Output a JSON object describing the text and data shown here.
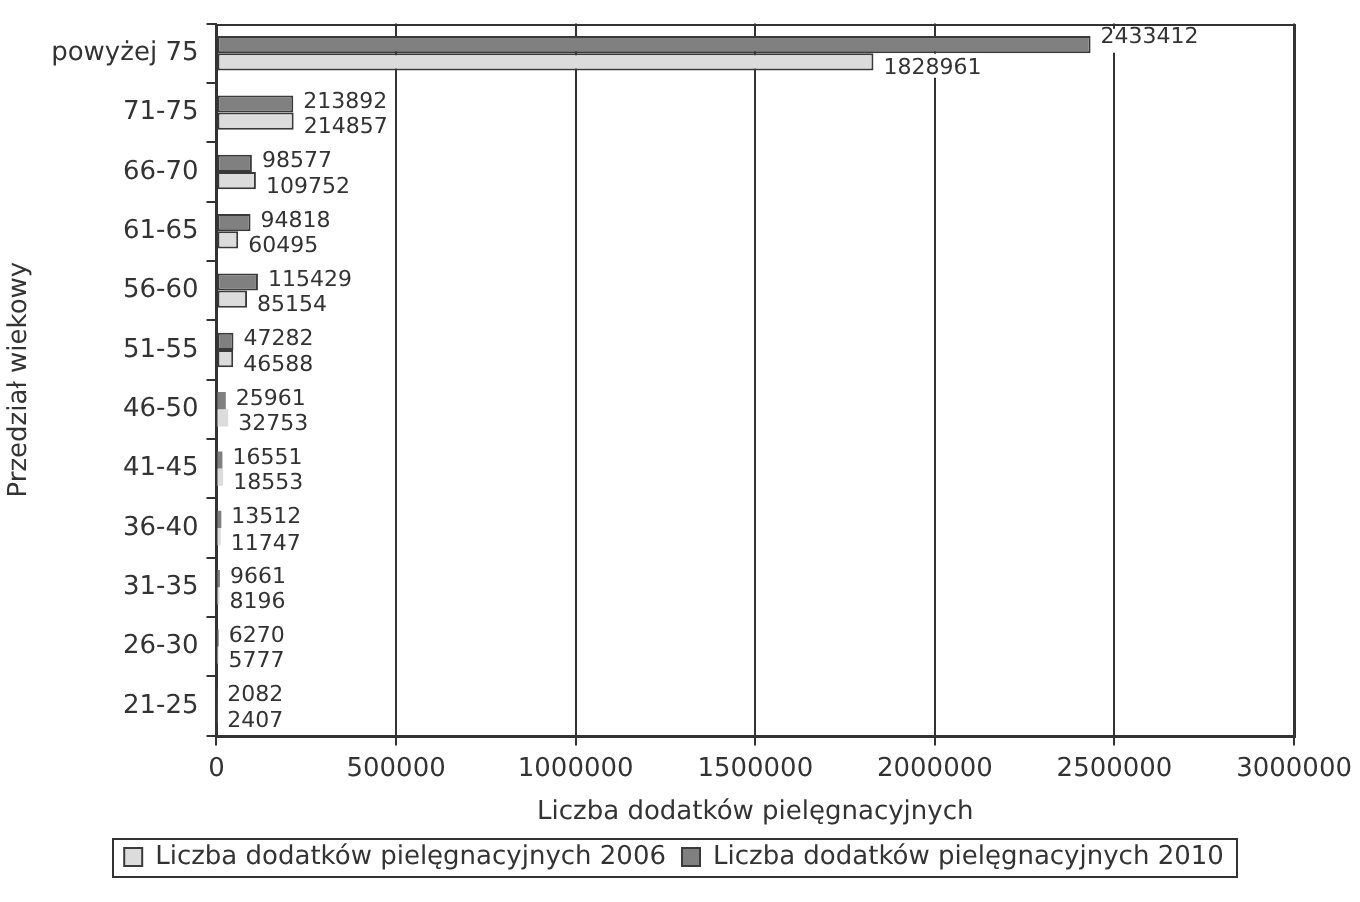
{
  "chart_data": {
    "type": "bar",
    "orientation": "horizontal",
    "xlabel": "Liczba dodatków pielęgnacyjnych",
    "ylabel": "Przedział wiekowy",
    "categories": [
      "powyżej 75",
      "71-75",
      "66-70",
      "61-65",
      "56-60",
      "51-55",
      "46-50",
      "41-45",
      "36-40",
      "31-35",
      "26-30",
      "21-25"
    ],
    "series": [
      {
        "name": "Liczba dodatków pielęgnacyjnych 2006",
        "color": "#dcdcdc",
        "values": [
          1828961,
          214857,
          109752,
          60495,
          85154,
          46588,
          32753,
          18553,
          11747,
          8196,
          5777,
          2407
        ]
      },
      {
        "name": "Liczba dodatków pielęgnacyjnych 2010",
        "color": "#808080",
        "values": [
          2433412,
          213892,
          98577,
          94818,
          115429,
          47282,
          25961,
          16551,
          13512,
          9661,
          6270,
          2082
        ]
      }
    ],
    "xlim": [
      0,
      3000000
    ],
    "xticks": [
      0,
      500000,
      1000000,
      1500000,
      2000000,
      2500000,
      3000000
    ],
    "grid": "x",
    "legend": "bottom",
    "data_labels": true
  }
}
